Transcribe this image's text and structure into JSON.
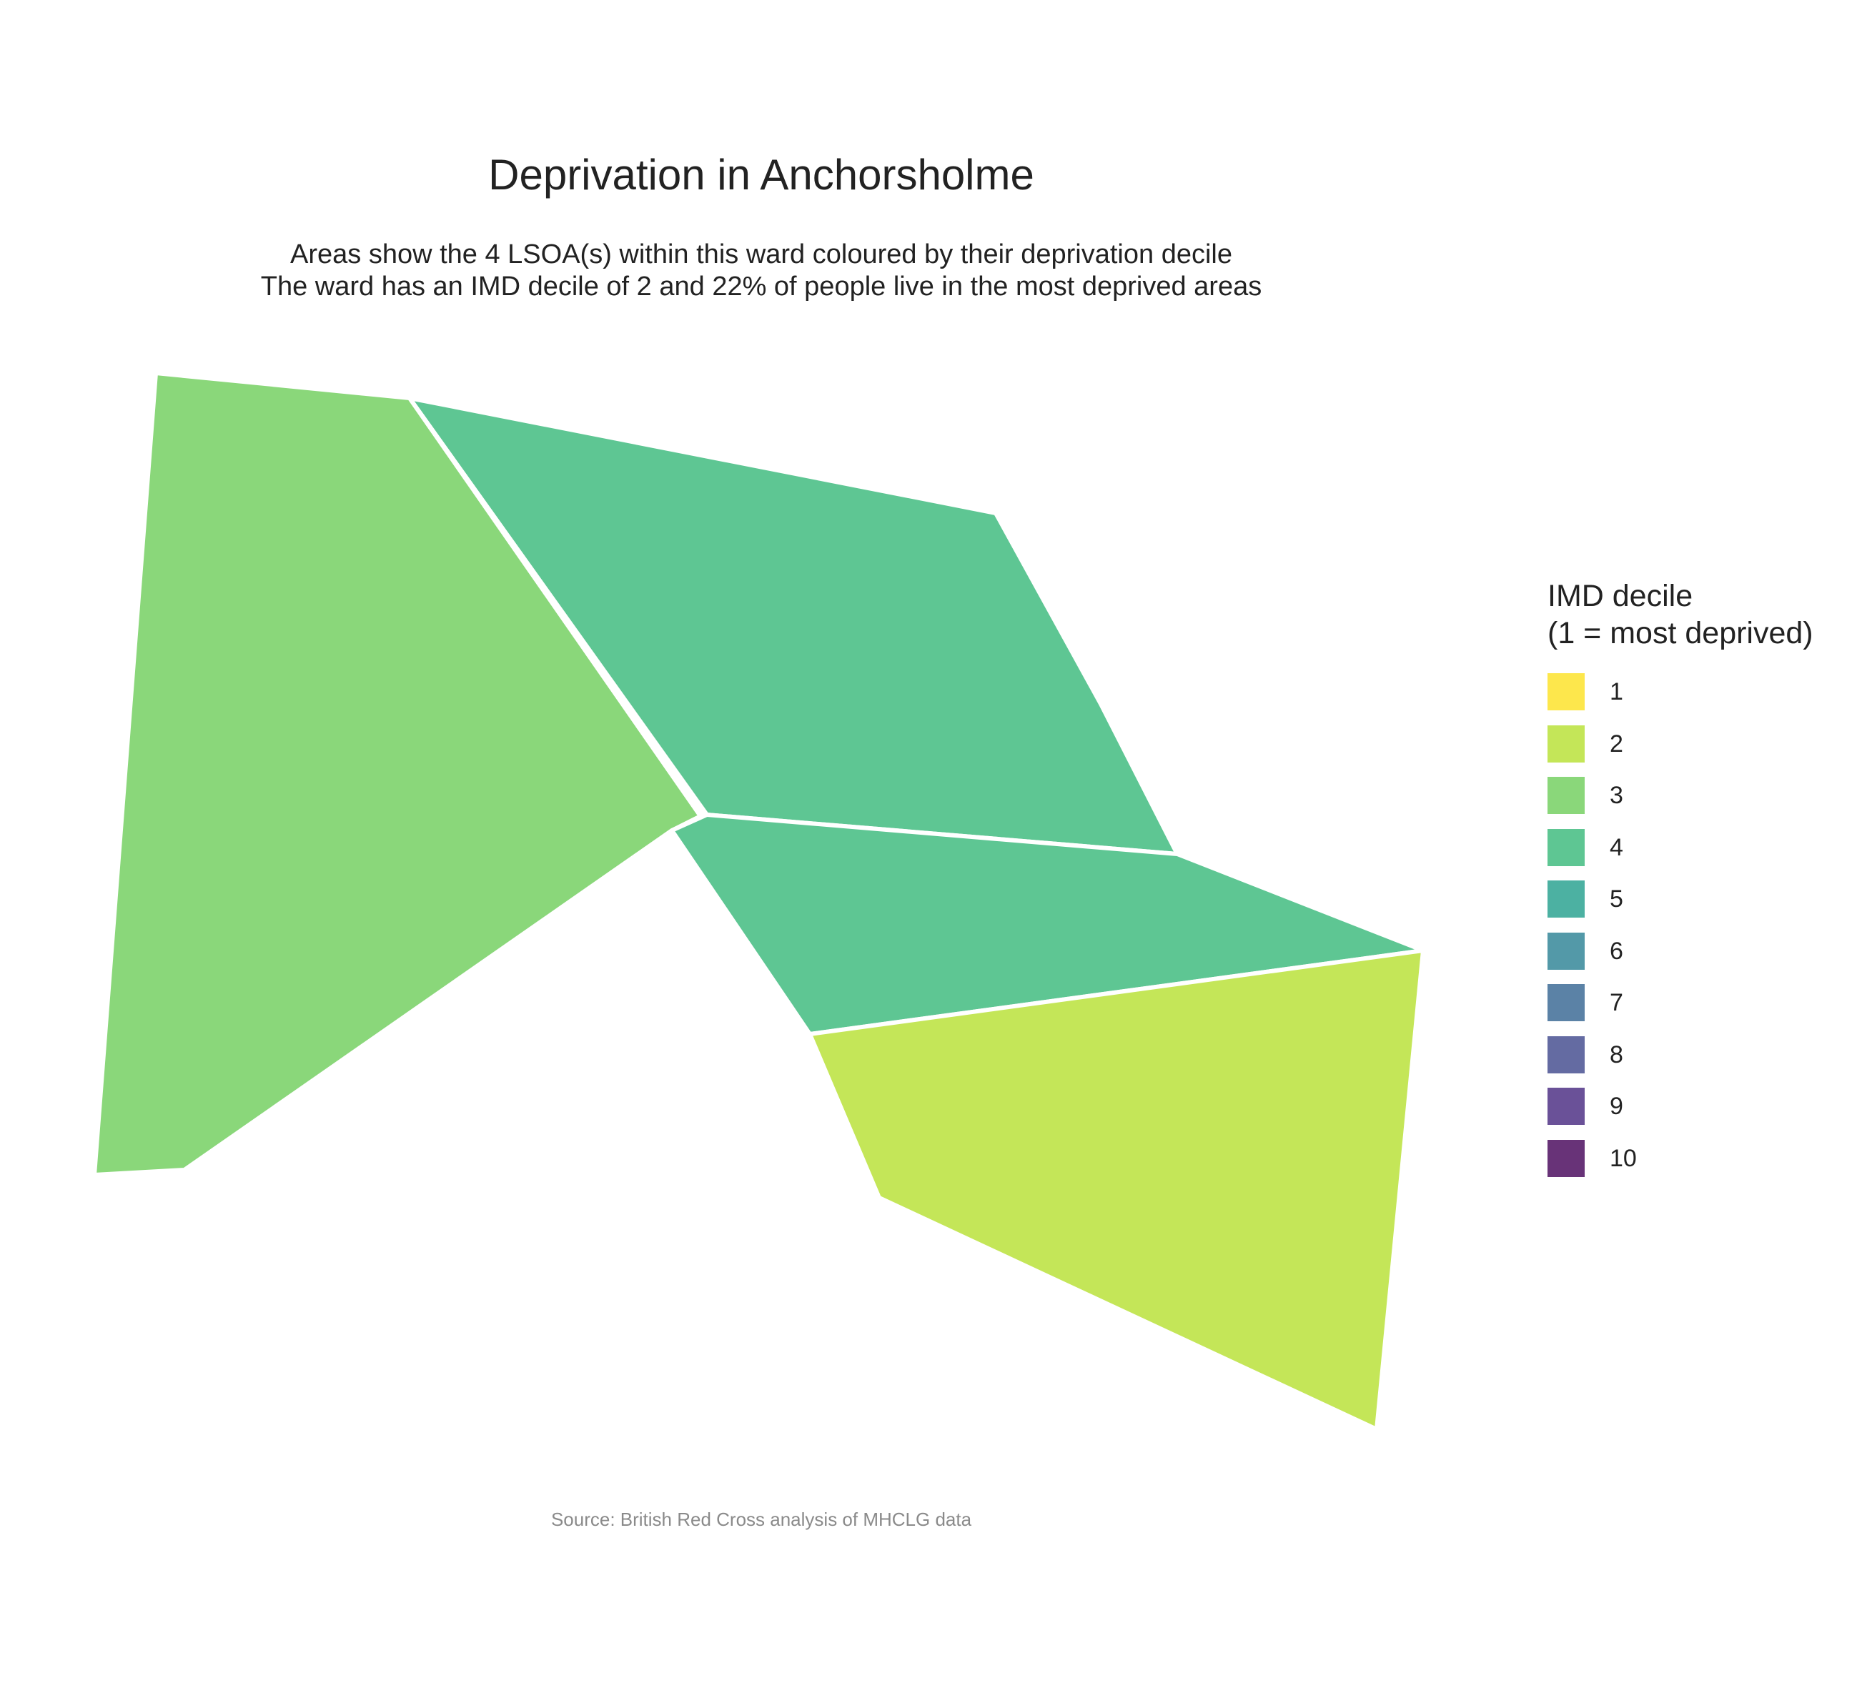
{
  "title": "Deprivation in Anchorsholme",
  "subtitle": {
    "line1": "Areas show the 4 LSOA(s) within this ward coloured by their deprivation decile",
    "line2": "The ward has an IMD decile of 2 and 22% of people live in the most deprived areas"
  },
  "caption": "Source: British Red Cross analysis of MHCLG data",
  "legend": {
    "title_line1": "IMD decile",
    "title_line2": "(1 = most deprived)",
    "items": [
      {
        "label": "1",
        "color": "#FDE74C"
      },
      {
        "label": "2",
        "color": "#C4E658"
      },
      {
        "label": "3",
        "color": "#8AD77A"
      },
      {
        "label": "4",
        "color": "#5EC693"
      },
      {
        "label": "5",
        "color": "#4CB1A2"
      },
      {
        "label": "6",
        "color": "#5399A8"
      },
      {
        "label": "7",
        "color": "#5B82A6"
      },
      {
        "label": "8",
        "color": "#646BA2"
      },
      {
        "label": "9",
        "color": "#6A5198"
      },
      {
        "label": "10",
        "color": "#683378"
      }
    ]
  },
  "chart_data": {
    "type": "choropleth",
    "areas": [
      {
        "decile": 3
      },
      {
        "decile": 4
      },
      {
        "decile": 4
      },
      {
        "decile": 2
      }
    ]
  }
}
